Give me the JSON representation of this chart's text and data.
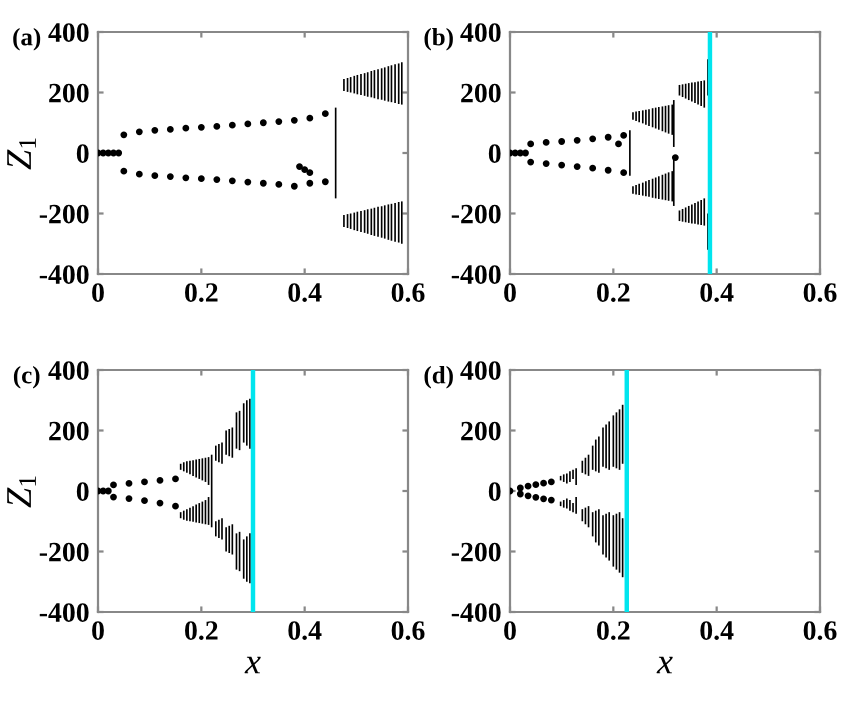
{
  "chart_data": [
    {
      "type": "scatter",
      "title": "(a)",
      "ylabel": "Z$_{1}$",
      "xlim": [
        0,
        0.6
      ],
      "xticks": [
        0,
        0.2,
        0.4,
        0.6
      ],
      "ylim": [
        -400,
        400
      ],
      "yticks": [
        -400,
        -200,
        0,
        200,
        400
      ],
      "marker": "circle",
      "grid": false,
      "legend": false,
      "series": [
        {
          "color": "#000000",
          "x": [
            0,
            0.01,
            0.02,
            0.03,
            0.04,
            0.05,
            0.08,
            0.11,
            0.14,
            0.17,
            0.2,
            0.23,
            0.26,
            0.29,
            0.32,
            0.35,
            0.38,
            0.41,
            0.44,
            0.05,
            0.08,
            0.11,
            0.14,
            0.17,
            0.2,
            0.23,
            0.26,
            0.29,
            0.32,
            0.35,
            0.38,
            0.41,
            0.44,
            0.39,
            0.4,
            0.41
          ],
          "values": [
            0,
            0,
            0,
            0,
            0,
            60,
            70,
            75,
            78,
            82,
            85,
            88,
            92,
            96,
            100,
            104,
            108,
            115,
            130,
            -60,
            -70,
            -75,
            -78,
            -82,
            -85,
            -88,
            -92,
            -96,
            -100,
            -104,
            -110,
            -100,
            -95,
            -45,
            -55,
            -65
          ]
        },
        {
          "type": "bar",
          "color": "#000000",
          "x": [
            0.46
          ],
          "base": [
            -150
          ],
          "values": [
            300
          ]
        },
        {
          "type": "bar",
          "color": "#000000",
          "x": [
            0.476,
            0.483,
            0.489,
            0.496,
            0.502,
            0.509,
            0.516,
            0.522,
            0.529,
            0.535,
            0.542,
            0.549,
            0.555,
            0.562,
            0.568,
            0.575,
            0.582,
            0.588
          ],
          "base": [
            205,
            202,
            200,
            197,
            194,
            192,
            189,
            186,
            184,
            181,
            178,
            176,
            173,
            170,
            168,
            165,
            162,
            160
          ],
          "values": [
            40,
            46,
            51,
            58,
            64,
            69,
            75,
            81,
            87,
            93,
            99,
            104,
            110,
            117,
            122,
            128,
            134,
            140
          ]
        },
        {
          "type": "bar",
          "color": "#000000",
          "x": [
            0.476,
            0.483,
            0.489,
            0.496,
            0.502,
            0.509,
            0.516,
            0.522,
            0.529,
            0.535,
            0.542,
            0.549,
            0.555,
            0.562,
            0.568,
            0.575,
            0.582,
            0.588
          ],
          "base": [
            -245,
            -248,
            -251,
            -255,
            -258,
            -261,
            -264,
            -267,
            -271,
            -274,
            -277,
            -280,
            -283,
            -287,
            -290,
            -293,
            -296,
            -300
          ],
          "values": [
            40,
            46,
            51,
            58,
            64,
            69,
            75,
            81,
            87,
            93,
            99,
            104,
            110,
            117,
            122,
            128,
            134,
            140
          ]
        }
      ]
    },
    {
      "type": "scatter",
      "title": "(b)",
      "xlim": [
        0,
        0.6
      ],
      "xticks": [
        0,
        0.2,
        0.4,
        0.6
      ],
      "ylim": [
        -400,
        400
      ],
      "yticks": [
        -400,
        -200,
        0,
        200,
        400
      ],
      "marker": "circle",
      "grid": false,
      "legend": false,
      "series": [
        {
          "color": "#000000",
          "x": [
            0,
            0.01,
            0.02,
            0.03,
            0.04,
            0.07,
            0.1,
            0.13,
            0.16,
            0.19,
            0.22,
            0.04,
            0.07,
            0.1,
            0.13,
            0.16,
            0.19,
            0.22,
            0.21,
            0.32
          ],
          "values": [
            0,
            0,
            0,
            0,
            30,
            35,
            38,
            42,
            47,
            52,
            58,
            -30,
            -35,
            -40,
            -45,
            -50,
            -57,
            -65,
            30,
            -15
          ]
        },
        {
          "type": "bar",
          "color": "#000000",
          "x": [
            0.232,
            0.238,
            0.244,
            0.25,
            0.257,
            0.263,
            0.269,
            0.276,
            0.282,
            0.288,
            0.295,
            0.301,
            0.307,
            0.314,
            0.317,
            0.328,
            0.334,
            0.34,
            0.346,
            0.352,
            0.358,
            0.364,
            0.37,
            0.376,
            0.383
          ],
          "base": [
            -75,
            110,
            106,
            102,
            98,
            93,
            89,
            85,
            81,
            77,
            72,
            68,
            64,
            60,
            20,
            190,
            185,
            180,
            175,
            170,
            165,
            160,
            155,
            150,
            190
          ],
          "values": [
            150,
            25,
            31,
            37,
            43,
            50,
            56,
            63,
            69,
            75,
            82,
            88,
            94,
            100,
            155,
            35,
            42,
            49,
            56,
            63,
            69,
            76,
            83,
            90,
            120
          ]
        },
        {
          "type": "bar",
          "color": "#000000",
          "x": [
            0.238,
            0.244,
            0.25,
            0.257,
            0.263,
            0.269,
            0.276,
            0.282,
            0.288,
            0.295,
            0.301,
            0.307,
            0.314,
            0.317,
            0.328,
            0.334,
            0.34,
            0.346,
            0.352,
            0.358,
            0.364,
            0.37,
            0.376,
            0.383
          ],
          "base": [
            -135,
            -137,
            -139,
            -141,
            -143,
            -145,
            -148,
            -150,
            -152,
            -154,
            -156,
            -158,
            -160,
            -175,
            -225,
            -227,
            -229,
            -231,
            -233,
            -234,
            -236,
            -238,
            -240,
            -320
          ],
          "values": [
            25,
            31,
            37,
            43,
            50,
            56,
            63,
            69,
            75,
            82,
            88,
            94,
            100,
            155,
            35,
            42,
            49,
            56,
            63,
            69,
            76,
            83,
            90,
            120
          ]
        }
      ],
      "ref_lines": [
        {
          "axis": "x",
          "value": 0.387,
          "color": "#00e5ee"
        }
      ]
    },
    {
      "type": "scatter",
      "title": "(c)",
      "ylabel": "Z$_{1}$",
      "xlabel": "x",
      "xlim": [
        0,
        0.6
      ],
      "xticks": [
        0,
        0.2,
        0.4,
        0.6
      ],
      "ylim": [
        -400,
        400
      ],
      "yticks": [
        -400,
        -200,
        0,
        200,
        400
      ],
      "marker": "circle",
      "grid": false,
      "legend": false,
      "series": [
        {
          "color": "#000000",
          "x": [
            0,
            0.01,
            0.02,
            0.03,
            0.06,
            0.09,
            0.12,
            0.15,
            0.03,
            0.06,
            0.09,
            0.12,
            0.15
          ],
          "values": [
            0,
            0,
            0,
            20,
            25,
            30,
            35,
            40,
            -20,
            -25,
            -32,
            -40,
            -50
          ]
        },
        {
          "type": "bar",
          "color": "#000000",
          "x": [
            0.16,
            0.166,
            0.172,
            0.178,
            0.184,
            0.19,
            0.196,
            0.202,
            0.208,
            0.214,
            0.22,
            0.228,
            0.234,
            0.24,
            0.248,
            0.254,
            0.26,
            0.268,
            0.274,
            0.282,
            0.288,
            0.294
          ],
          "base": [
            70,
            65,
            60,
            55,
            50,
            45,
            40,
            35,
            30,
            20,
            0,
            100,
            95,
            90,
            120,
            115,
            110,
            140,
            135,
            160,
            150,
            140
          ],
          "values": [
            20,
            30,
            38,
            45,
            52,
            59,
            66,
            73,
            80,
            92,
            120,
            50,
            60,
            70,
            80,
            90,
            100,
            120,
            130,
            130,
            150,
            165
          ]
        },
        {
          "type": "bar",
          "color": "#000000",
          "x": [
            0.16,
            0.166,
            0.172,
            0.178,
            0.184,
            0.19,
            0.196,
            0.202,
            0.208,
            0.214,
            0.22,
            0.228,
            0.234,
            0.24,
            0.248,
            0.254,
            0.26,
            0.268,
            0.274,
            0.282,
            0.288,
            0.294
          ],
          "base": [
            -90,
            -95,
            -98,
            -100,
            -102,
            -104,
            -106,
            -108,
            -110,
            -112,
            -120,
            -150,
            -155,
            -160,
            -200,
            -205,
            -210,
            -260,
            -265,
            -290,
            -300,
            -305
          ],
          "values": [
            20,
            30,
            38,
            45,
            52,
            59,
            66,
            73,
            80,
            92,
            120,
            50,
            60,
            70,
            80,
            90,
            100,
            120,
            130,
            130,
            150,
            165
          ]
        }
      ],
      "ref_lines": [
        {
          "axis": "x",
          "value": 0.3,
          "color": "#00e5ee"
        }
      ]
    },
    {
      "type": "scatter",
      "title": "(d)",
      "xlabel": "x",
      "xlim": [
        0,
        0.6
      ],
      "xticks": [
        0,
        0.2,
        0.4,
        0.6
      ],
      "ylim": [
        -400,
        400
      ],
      "yticks": [
        -400,
        -200,
        0,
        200,
        400
      ],
      "marker": "circle",
      "grid": false,
      "legend": false,
      "series": [
        {
          "color": "#000000",
          "x": [
            0,
            0.02,
            0.035,
            0.05,
            0.065,
            0.08,
            0.02,
            0.035,
            0.05,
            0.065,
            0.08
          ],
          "values": [
            0,
            10,
            16,
            21,
            26,
            30,
            -10,
            -16,
            -21,
            -26,
            -30
          ]
        },
        {
          "type": "bar",
          "color": "#000000",
          "x": [
            0.098,
            0.104,
            0.11,
            0.116,
            0.122,
            0.128,
            0.14,
            0.146,
            0.152,
            0.16,
            0.166,
            0.172,
            0.18,
            0.186,
            0.192,
            0.2,
            0.206,
            0.212,
            0.218
          ],
          "base": [
            35,
            30,
            25,
            30,
            40,
            20,
            60,
            55,
            50,
            70,
            65,
            60,
            80,
            75,
            70,
            80,
            75,
            70,
            90
          ],
          "values": [
            15,
            25,
            33,
            35,
            30,
            55,
            40,
            55,
            70,
            80,
            105,
            120,
            130,
            145,
            160,
            170,
            185,
            200,
            195
          ]
        },
        {
          "type": "bar",
          "color": "#000000",
          "x": [
            0.098,
            0.104,
            0.11,
            0.116,
            0.122,
            0.128,
            0.14,
            0.146,
            0.152,
            0.16,
            0.166,
            0.172,
            0.18,
            0.186,
            0.192,
            0.2,
            0.206,
            0.212,
            0.218
          ],
          "base": [
            -50,
            -55,
            -58,
            -65,
            -70,
            -75,
            -100,
            -110,
            -120,
            -150,
            -170,
            -180,
            -210,
            -220,
            -230,
            -250,
            -260,
            -270,
            -285
          ],
          "values": [
            15,
            25,
            33,
            35,
            30,
            55,
            40,
            55,
            70,
            80,
            105,
            120,
            130,
            145,
            160,
            170,
            185,
            200,
            195
          ]
        }
      ],
      "ref_lines": [
        {
          "axis": "x",
          "value": 0.226,
          "color": "#00e5ee"
        }
      ]
    }
  ]
}
